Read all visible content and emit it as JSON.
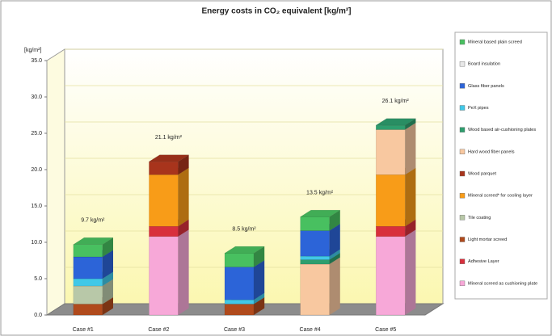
{
  "chart_data": {
    "type": "bar3d_stacked",
    "title": "Energy costs in CO₂ equivalent [kg/m²]",
    "y_label": "[kg/m²]",
    "categories": [
      "Case #1",
      "Case #2",
      "Case #3",
      "Case #4",
      "Case #5"
    ],
    "annotations": [
      "9.7 kg/m²",
      "21.1 kg/m²",
      "8.5 kg/m²",
      "13.5 kg/m²",
      "26.1 kg/m²"
    ],
    "ylim": [
      0,
      35
    ],
    "yticks": [
      {
        "value": 0,
        "label": "0.0"
      },
      {
        "value": 5,
        "label": "5.0"
      },
      {
        "value": 10,
        "label": "10.0"
      },
      {
        "value": 15,
        "label": "15.0"
      },
      {
        "value": 20,
        "label": "20.0"
      },
      {
        "value": 25,
        "label": "25.0"
      },
      {
        "value": 30,
        "label": "30.0"
      },
      {
        "value": 35,
        "label": "35.0"
      }
    ],
    "grid": true,
    "legend": "right",
    "series": [
      {
        "name": "Mineral screed as cushioning plate",
        "color": "#f7a8d8",
        "values": [
          0,
          10.8,
          0,
          0,
          10.8
        ]
      },
      {
        "name": "Adhesive Layer",
        "color": "#d8303c",
        "values": [
          0,
          1.4,
          0,
          0,
          1.4
        ]
      },
      {
        "name": "Light mortar screed",
        "color": "#b04a1c",
        "values": [
          1.5,
          0,
          1.5,
          0,
          0
        ]
      },
      {
        "name": "Tile coating",
        "color": "#b8c8a8",
        "values": [
          2.5,
          0,
          0,
          0,
          0
        ]
      },
      {
        "name": "Mineral screed* for cooling layer",
        "color": "#f89c18",
        "values": [
          0,
          7.1,
          0,
          0,
          7.1
        ]
      },
      {
        "name": "Wood parquet",
        "color": "#a8341c",
        "values": [
          0,
          1.8,
          0,
          0,
          0
        ]
      },
      {
        "name": "Hard wood fiber panels",
        "color": "#f8c8a0",
        "values": [
          0,
          0,
          0,
          7.0,
          6.2
        ]
      },
      {
        "name": "Wood based air-cushioning plates",
        "color": "#2e9e6e",
        "values": [
          0,
          0,
          0,
          0.6,
          0.6
        ]
      },
      {
        "name": "PeX pipes",
        "color": "#40c8e8",
        "values": [
          1.0,
          0,
          0.6,
          0.5,
          0
        ]
      },
      {
        "name": "Glass fiber panels",
        "color": "#2c64d8",
        "values": [
          3.0,
          0,
          4.5,
          3.5,
          0
        ]
      },
      {
        "name": "Board insulation",
        "color": "#e8e8e8",
        "values": [
          0,
          0,
          0,
          0,
          0
        ]
      },
      {
        "name": "Mineral based plain screed",
        "color": "#48c060",
        "values": [
          1.7,
          0,
          1.9,
          1.9,
          0
        ]
      }
    ]
  }
}
